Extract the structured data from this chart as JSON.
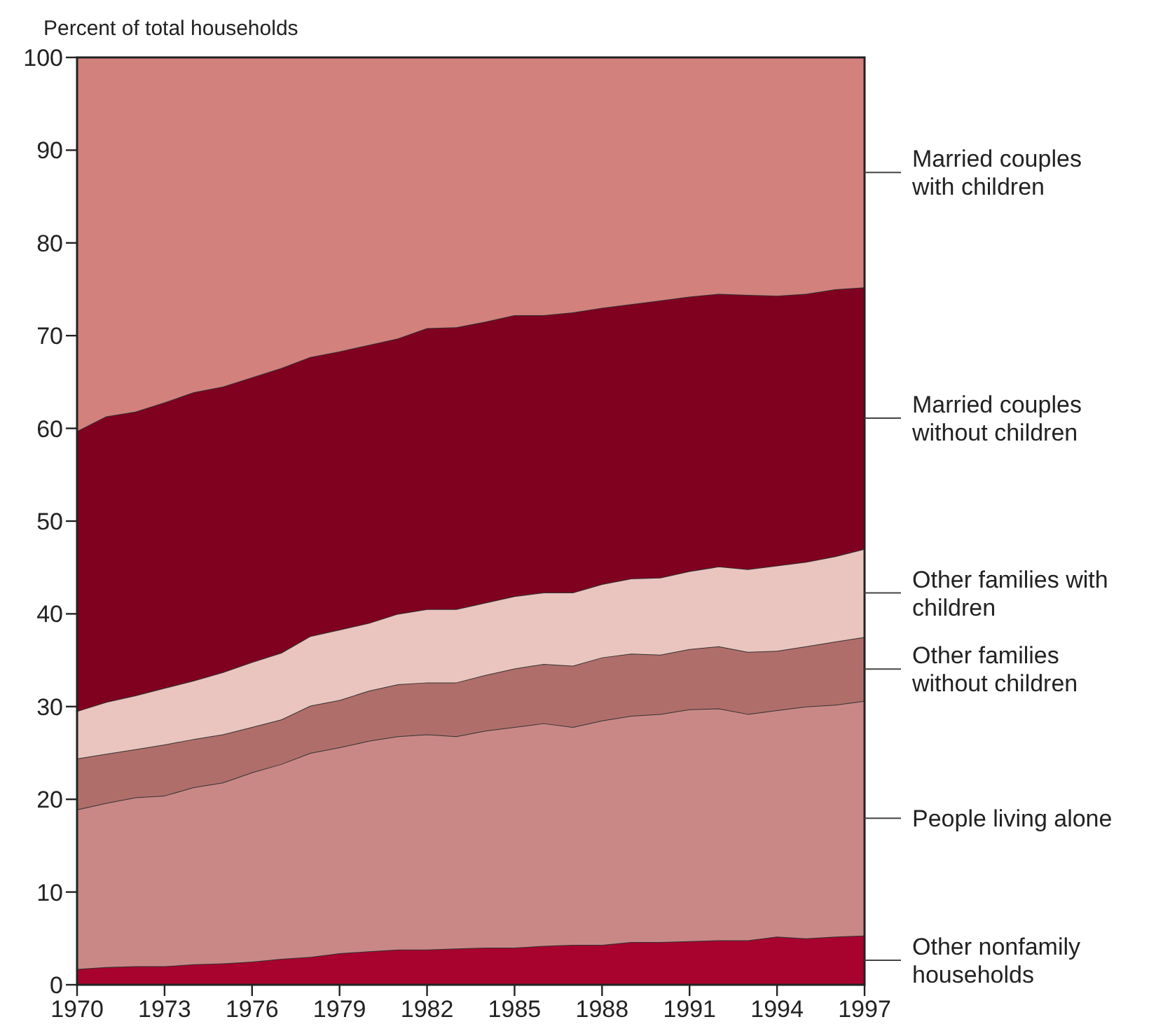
{
  "chart_data": {
    "type": "area",
    "stacked": true,
    "ylabel": "Percent of total households",
    "x": [
      1970,
      1971,
      1972,
      1973,
      1974,
      1975,
      1976,
      1977,
      1978,
      1979,
      1980,
      1981,
      1982,
      1983,
      1984,
      1985,
      1986,
      1987,
      1988,
      1989,
      1990,
      1991,
      1992,
      1993,
      1994,
      1995,
      1996,
      1997
    ],
    "xlim": [
      1970,
      1997
    ],
    "xticks": [
      1970,
      1973,
      1976,
      1979,
      1982,
      1985,
      1988,
      1991,
      1994,
      1997
    ],
    "ylim": [
      0,
      100
    ],
    "yticks": [
      0,
      10,
      20,
      30,
      40,
      50,
      60,
      70,
      80,
      90,
      100
    ],
    "grid": false,
    "legend": "right",
    "series": [
      {
        "name": "Other nonfamily households",
        "color": "#a8032f",
        "values": [
          1.7,
          1.9,
          2.0,
          2.0,
          2.2,
          2.3,
          2.5,
          2.8,
          3.0,
          3.4,
          3.6,
          3.8,
          3.8,
          3.9,
          4.0,
          4.0,
          4.2,
          4.3,
          4.3,
          4.6,
          4.6,
          4.7,
          4.8,
          4.8,
          5.2,
          5.0,
          5.2,
          5.3
        ]
      },
      {
        "name": "People living alone",
        "color": "#c98886",
        "values": [
          17.2,
          17.7,
          18.2,
          18.4,
          19.1,
          19.5,
          20.4,
          21.0,
          22.0,
          22.2,
          22.7,
          23.0,
          23.2,
          22.9,
          23.4,
          23.8,
          24.0,
          23.5,
          24.2,
          24.4,
          24.6,
          25.0,
          25.0,
          24.4,
          24.4,
          25.0,
          25.0,
          25.3
        ]
      },
      {
        "name": "Other families without children",
        "color": "#b06e6a",
        "values": [
          5.5,
          5.3,
          5.2,
          5.5,
          5.2,
          5.2,
          4.9,
          4.8,
          5.1,
          5.1,
          5.4,
          5.6,
          5.6,
          5.8,
          6.0,
          6.3,
          6.4,
          6.6,
          6.8,
          6.7,
          6.4,
          6.5,
          6.7,
          6.7,
          6.4,
          6.5,
          6.8,
          6.9
        ]
      },
      {
        "name": "Other families with children",
        "color": "#eac5bf",
        "values": [
          5.1,
          5.6,
          5.8,
          6.1,
          6.3,
          6.7,
          7.0,
          7.2,
          7.5,
          7.6,
          7.3,
          7.6,
          7.9,
          7.9,
          7.8,
          7.8,
          7.7,
          7.9,
          7.9,
          8.1,
          8.3,
          8.4,
          8.6,
          8.9,
          9.2,
          9.1,
          9.2,
          9.5
        ]
      },
      {
        "name": "Married couples without children",
        "color": "#800020",
        "values": [
          30.2,
          30.8,
          30.6,
          30.8,
          31.1,
          30.8,
          30.7,
          30.7,
          30.1,
          30.0,
          30.0,
          29.7,
          30.3,
          30.4,
          30.3,
          30.3,
          29.9,
          30.2,
          29.8,
          29.6,
          29.9,
          29.6,
          29.4,
          29.6,
          29.1,
          28.9,
          28.8,
          28.2
        ]
      },
      {
        "name": "Married couples with children",
        "color": "#d3817d",
        "values": [
          40.3,
          38.7,
          38.2,
          37.2,
          36.1,
          35.5,
          34.5,
          33.5,
          32.3,
          31.7,
          31.0,
          30.3,
          29.2,
          29.1,
          28.5,
          27.8,
          27.8,
          27.5,
          27.0,
          26.6,
          26.2,
          25.8,
          25.5,
          25.6,
          25.7,
          25.5,
          25.0,
          24.8
        ]
      }
    ]
  }
}
